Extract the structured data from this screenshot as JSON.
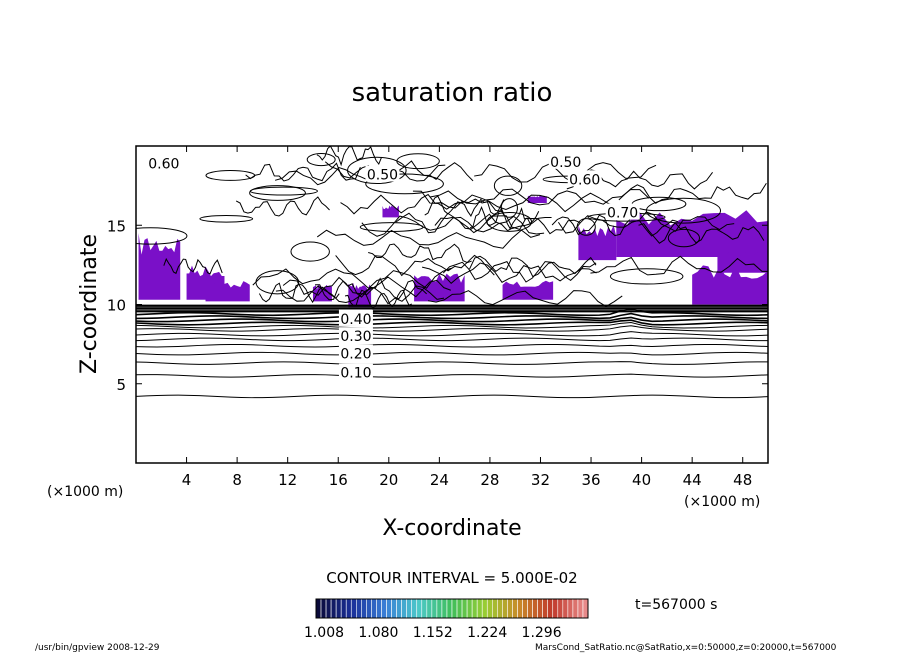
{
  "chart_data": {
    "type": "contour",
    "title": "saturation ratio",
    "xlabel": "X-coordinate",
    "ylabel": "Z-coordinate",
    "x_unit": "(×1000 m)",
    "y_unit": "(×1000 m)",
    "xlim": [
      0,
      50
    ],
    "ylim": [
      0,
      20
    ],
    "x_ticks": [
      4,
      8,
      12,
      16,
      20,
      24,
      28,
      32,
      36,
      40,
      44,
      48
    ],
    "y_ticks": [
      5,
      10,
      15
    ],
    "contour_interval_text": "CONTOUR INTERVAL = 5.000E-02",
    "contour_interval": 0.05,
    "contour_labels": [
      {
        "text": "0.60",
        "x": 2.2,
        "z": 18.9
      },
      {
        "text": "0.50",
        "x": 19.5,
        "z": 18.2
      },
      {
        "text": "0.50",
        "x": 34.0,
        "z": 19.0
      },
      {
        "text": "0.60",
        "x": 35.5,
        "z": 17.9
      },
      {
        "text": "0.70",
        "x": 38.5,
        "z": 15.8
      },
      {
        "text": "0.40",
        "x": 17.4,
        "z": 9.1
      },
      {
        "text": "0.30",
        "x": 17.4,
        "z": 8.0
      },
      {
        "text": "0.20",
        "x": 17.4,
        "z": 6.9
      },
      {
        "text": "0.10",
        "x": 17.4,
        "z": 5.7
      }
    ],
    "horizontal_contours_z": [
      4.2,
      5.5,
      6.3,
      6.9,
      7.4,
      7.8,
      8.1,
      8.4,
      8.6,
      8.8,
      9.0,
      9.2,
      9.4
    ],
    "shaded_min": 1.008,
    "colorbar_ticks": [
      "1.008",
      "1.080",
      "1.152",
      "1.224",
      "1.296"
    ],
    "colorbar_colors": [
      "#0b0b3a",
      "#1a2f9a",
      "#3a7fd6",
      "#4cc9c9",
      "#3fbf5a",
      "#9acd32",
      "#c88a2a",
      "#c0392b",
      "#e88a8a"
    ],
    "supersaturated_color": "#7a10c8",
    "time_label": "t=567000 s",
    "footer_left": "/usr/bin/gpview   2008-12-29",
    "footer_right": "MarsCond_SatRatio.nc@SatRatio,x=0:50000,z=0:20000,t=567000"
  }
}
